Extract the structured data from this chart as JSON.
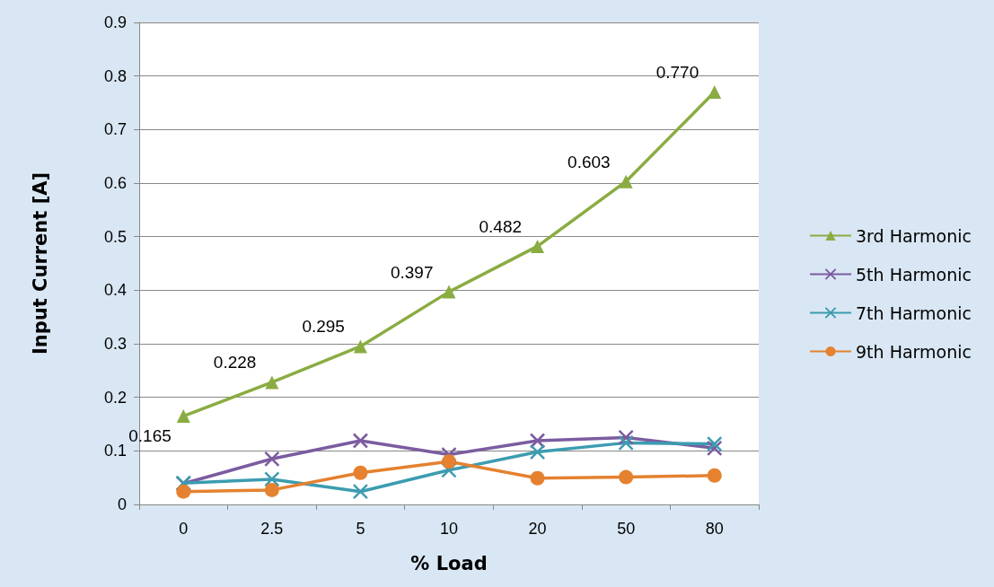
{
  "chart_data": {
    "type": "line",
    "xlabel": "% Load",
    "ylabel": "Input Current [A]",
    "categories": [
      "0",
      "2.5",
      "5",
      "10",
      "20",
      "50",
      "80"
    ],
    "ylim": [
      0,
      0.9
    ],
    "yticks": [
      0,
      0.1,
      0.2,
      0.3,
      0.4,
      0.5,
      0.6,
      0.7,
      0.8,
      0.9
    ],
    "grid": "y",
    "legend": "right",
    "line_style": "solid",
    "series": [
      {
        "name": "3rd Harmonic",
        "color": "#8aac42",
        "marker": "triangle",
        "values": [
          0.165,
          0.228,
          0.295,
          0.397,
          0.482,
          0.603,
          0.77
        ],
        "value_labels": [
          "0.165",
          "0.228",
          "0.295",
          "0.397",
          "0.482",
          "0.603",
          "0.770"
        ]
      },
      {
        "name": "5th Harmonic",
        "color": "#7b5ca0",
        "marker": "cross",
        "values": [
          0.039,
          0.085,
          0.119,
          0.093,
          0.119,
          0.125,
          0.105
        ]
      },
      {
        "name": "7th Harmonic",
        "color": "#3c9cb0",
        "marker": "cross",
        "values": [
          0.04,
          0.047,
          0.024,
          0.064,
          0.098,
          0.115,
          0.113
        ]
      },
      {
        "name": "9th Harmonic",
        "color": "#e5812f",
        "marker": "circle",
        "values": [
          0.024,
          0.027,
          0.059,
          0.08,
          0.049,
          0.051,
          0.054
        ]
      }
    ]
  }
}
